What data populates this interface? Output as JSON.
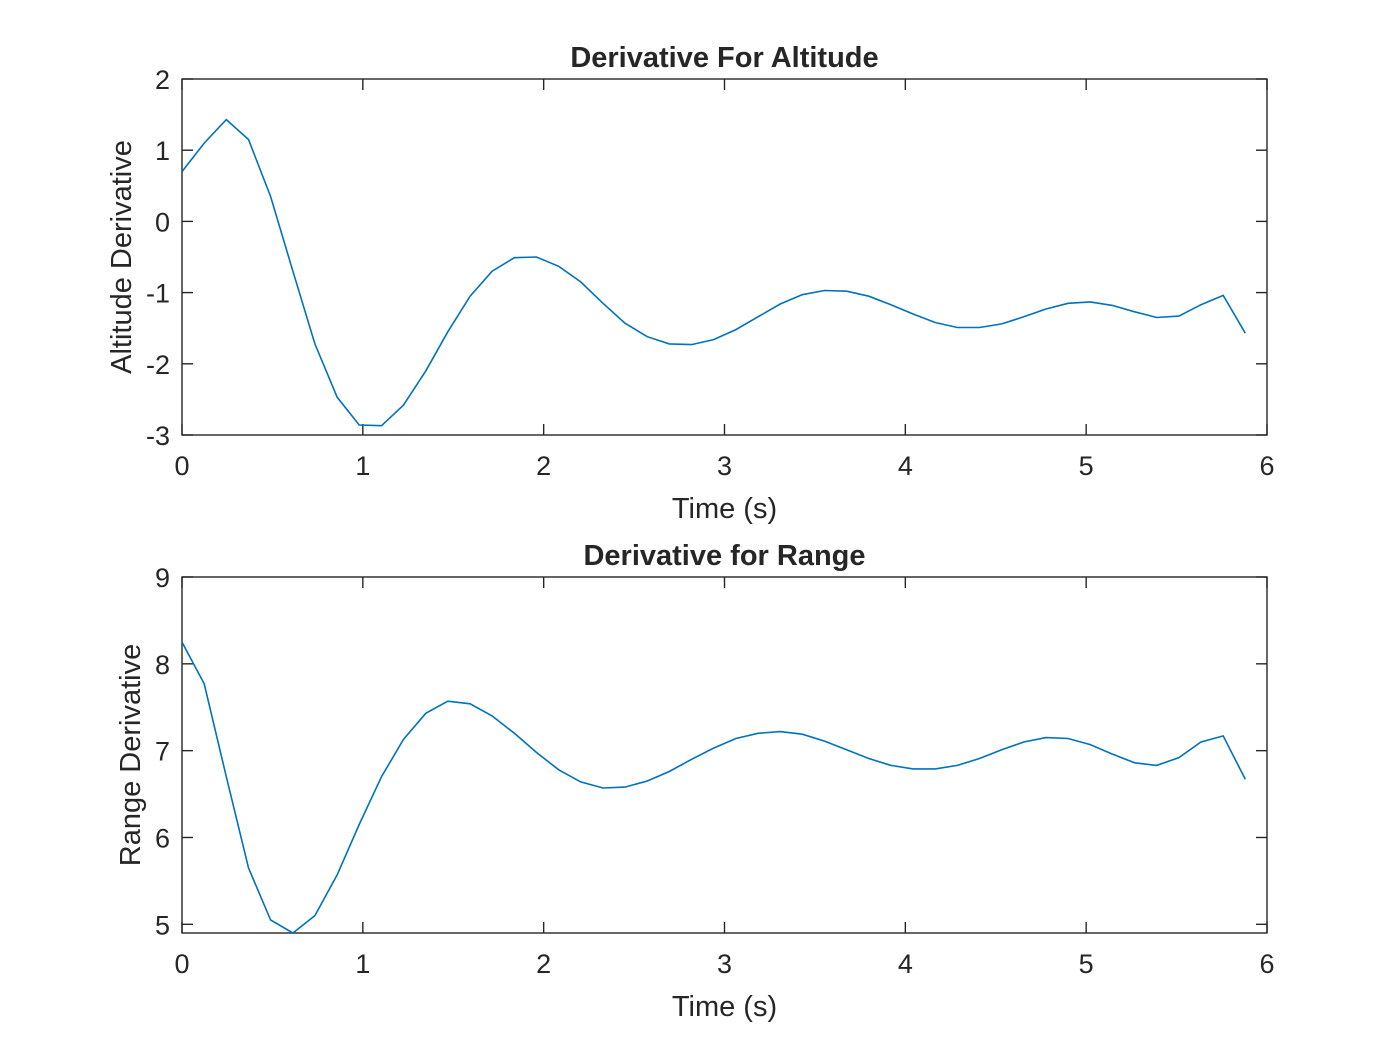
{
  "chart_data": [
    {
      "type": "line",
      "title": "Derivative For Altitude",
      "xlabel": "Time (s)",
      "ylabel": "Altitude Derivative",
      "xlim": [
        0,
        6
      ],
      "ylim": [
        -3,
        2
      ],
      "xticks": [
        "0",
        "1",
        "2",
        "3",
        "4",
        "5",
        "6"
      ],
      "yticks": [
        "2",
        "1",
        "0",
        "-1",
        "-2",
        "-3"
      ],
      "grid": false,
      "color": "#0072BD",
      "series": [
        {
          "x": [
            0,
            0.123,
            0.245,
            0.368,
            0.49,
            0.613,
            0.735,
            0.858,
            0.98,
            1.103,
            1.225,
            1.348,
            1.47,
            1.593,
            1.715,
            1.838,
            1.96,
            2.083,
            2.205,
            2.328,
            2.45,
            2.573,
            2.695,
            2.818,
            2.94,
            3.063,
            3.185,
            3.308,
            3.43,
            3.553,
            3.675,
            3.798,
            3.92,
            4.043,
            4.165,
            4.288,
            4.41,
            4.533,
            4.655,
            4.778,
            4.9,
            5.023,
            5.145,
            5.268,
            5.39,
            5.513,
            5.635,
            5.758,
            5.88
          ],
          "values": [
            0.7,
            1.1,
            1.43,
            1.15,
            0.35,
            -0.7,
            -1.72,
            -2.47,
            -2.86,
            -2.87,
            -2.58,
            -2.1,
            -1.55,
            -1.05,
            -0.7,
            -0.51,
            -0.5,
            -0.63,
            -0.85,
            -1.15,
            -1.43,
            -1.62,
            -1.72,
            -1.73,
            -1.66,
            -1.52,
            -1.34,
            -1.16,
            -1.03,
            -0.97,
            -0.98,
            -1.05,
            -1.17,
            -1.3,
            -1.42,
            -1.49,
            -1.49,
            -1.44,
            -1.34,
            -1.23,
            -1.15,
            -1.13,
            -1.18,
            -1.27,
            -1.35,
            -1.33,
            -1.17,
            -1.04,
            -1.57
          ]
        }
      ]
    },
    {
      "type": "line",
      "title": "Derivative for Range",
      "xlabel": "Time (s)",
      "ylabel": "Range Derivative",
      "xlim": [
        0,
        6
      ],
      "ylim": [
        4.9,
        9
      ],
      "xticks": [
        "0",
        "1",
        "2",
        "3",
        "4",
        "5",
        "6"
      ],
      "yticks": [
        "9",
        "8",
        "7",
        "6",
        "5"
      ],
      "ytick_values": [
        9,
        8,
        7,
        6,
        5
      ],
      "grid": false,
      "color": "#0072BD",
      "series": [
        {
          "x": [
            0,
            0.123,
            0.245,
            0.368,
            0.49,
            0.613,
            0.735,
            0.858,
            0.98,
            1.103,
            1.225,
            1.348,
            1.47,
            1.593,
            1.715,
            1.838,
            1.96,
            2.083,
            2.205,
            2.328,
            2.45,
            2.573,
            2.695,
            2.818,
            2.94,
            3.063,
            3.185,
            3.308,
            3.43,
            3.553,
            3.675,
            3.798,
            3.92,
            4.043,
            4.165,
            4.288,
            4.41,
            4.533,
            4.655,
            4.778,
            4.9,
            5.023,
            5.145,
            5.268,
            5.39,
            5.513,
            5.635,
            5.758,
            5.88
          ],
          "values": [
            8.25,
            7.77,
            6.7,
            5.65,
            5.05,
            4.9,
            5.1,
            5.57,
            6.15,
            6.7,
            7.13,
            7.43,
            7.57,
            7.54,
            7.4,
            7.2,
            6.98,
            6.78,
            6.64,
            6.57,
            6.58,
            6.65,
            6.76,
            6.9,
            7.03,
            7.14,
            7.2,
            7.22,
            7.19,
            7.11,
            7.01,
            6.91,
            6.83,
            6.79,
            6.79,
            6.83,
            6.91,
            7.01,
            7.1,
            7.15,
            7.14,
            7.07,
            6.96,
            6.86,
            6.83,
            6.92,
            7.1,
            7.17,
            6.67
          ]
        }
      ]
    }
  ]
}
